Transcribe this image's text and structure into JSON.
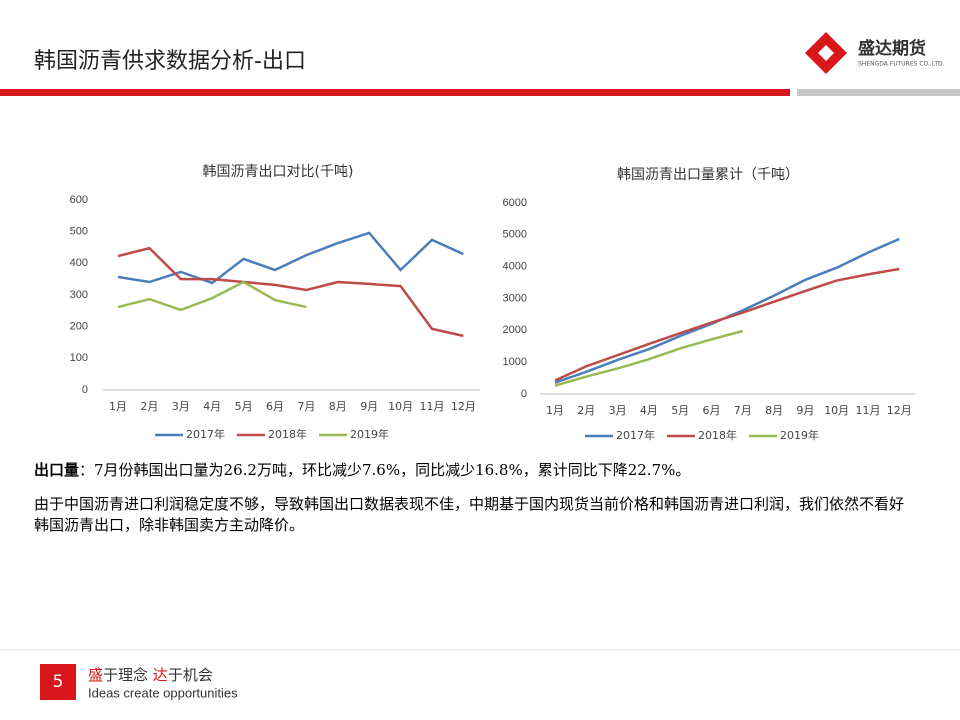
{
  "header": {
    "title": "韩国沥青供求数据分析-出口",
    "logo_name": "盛达期货",
    "logo_sub": "SHENGDA FUTURES CO.,LTD."
  },
  "chart_data": [
    {
      "type": "line",
      "title": "韩国沥青出口对比(千吨)",
      "categories": [
        "1月",
        "2月",
        "3月",
        "4月",
        "5月",
        "6月",
        "7月",
        "8月",
        "9月",
        "10月",
        "11月",
        "12月"
      ],
      "ylim": [
        0,
        600
      ],
      "yticks": [
        0,
        100,
        200,
        300,
        400,
        500,
        600
      ],
      "grid": false,
      "legend": "bottom",
      "series": [
        {
          "name": "2017年",
          "color": "#4a7ebb",
          "values": [
            357,
            341,
            373,
            338,
            414,
            379,
            426,
            464,
            496,
            379,
            474,
            429
          ]
        },
        {
          "name": "2018年",
          "color": "#be4b48",
          "values": [
            423,
            448,
            350,
            350,
            341,
            332,
            316,
            341,
            335,
            328,
            193,
            171
          ]
        },
        {
          "name": "2019年",
          "color": "#98b954",
          "values": [
            262,
            287,
            253,
            290,
            341,
            284,
            262,
            null,
            null,
            null,
            null,
            null
          ]
        }
      ]
    },
    {
      "type": "line",
      "title": "韩国沥青出口量累计（千吨）",
      "categories": [
        "1月",
        "2月",
        "3月",
        "4月",
        "5月",
        "6月",
        "7月",
        "8月",
        "9月",
        "10月",
        "11月",
        "12月"
      ],
      "ylim": [
        0,
        6000
      ],
      "yticks": [
        0,
        1000,
        2000,
        3000,
        4000,
        5000,
        6000
      ],
      "grid": false,
      "legend": "bottom",
      "series": [
        {
          "name": "2017年",
          "color": "#4a7ebb",
          "values": [
            357,
            698,
            1071,
            1409,
            1823,
            2202,
            2628,
            3092,
            3588,
            3967,
            4441,
            4870
          ]
        },
        {
          "name": "2018年",
          "color": "#be4b48",
          "values": [
            423,
            871,
            1221,
            1571,
            1912,
            2244,
            2560,
            2901,
            3236,
            3564,
            3757,
            3928
          ]
        },
        {
          "name": "2019年",
          "color": "#98b954",
          "values": [
            262,
            549,
            802,
            1092,
            1433,
            1717,
            1979,
            null,
            null,
            null,
            null,
            null
          ]
        }
      ]
    }
  ],
  "summary": {
    "label": "出口量",
    "text": "：7月份韩国出口量为26.2万吨，环比减少7.6%，同比减少16.8%，累计同比下降22.7%。"
  },
  "analysis": "由于中国沥青进口利润稳定度不够，导致韩国出口数据表现不佳，中期基于国内现货当前价格和韩国沥青进口利润，我们依然不看好韩国沥青出口，除非韩国卖方主动降价。",
  "footer": {
    "page": 5,
    "slogan": [
      "盛",
      "于理念 ",
      "达",
      "于机会"
    ],
    "slogan_en": "Ideas create opportunities"
  }
}
